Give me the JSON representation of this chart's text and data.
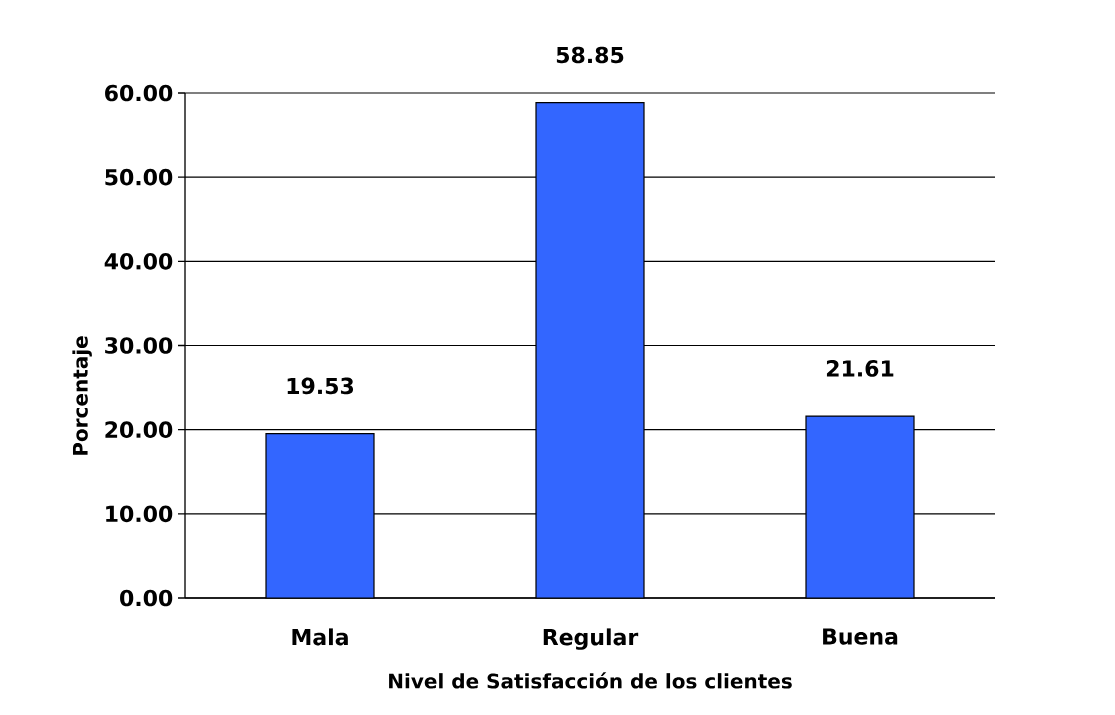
{
  "chart_data": {
    "type": "bar",
    "xlabel": "Nivel de Satisfacción de los clientes",
    "ylabel": "Porcentaje",
    "categories": [
      "Mala",
      "Regular",
      "Buena"
    ],
    "values": [
      19.53,
      58.85,
      21.61
    ],
    "color": "#3366ff",
    "ylim": [
      0,
      60
    ],
    "yticks": [
      {
        "value": 0,
        "label": "0.00"
      },
      {
        "value": 10,
        "label": "10.00"
      },
      {
        "value": 20,
        "label": "20.00"
      },
      {
        "value": 30,
        "label": "30.00"
      },
      {
        "value": 40,
        "label": "40.00"
      },
      {
        "value": 50,
        "label": "50.00"
      },
      {
        "value": 60,
        "label": "60.00"
      }
    ],
    "grid": "y",
    "data_labels": true
  }
}
